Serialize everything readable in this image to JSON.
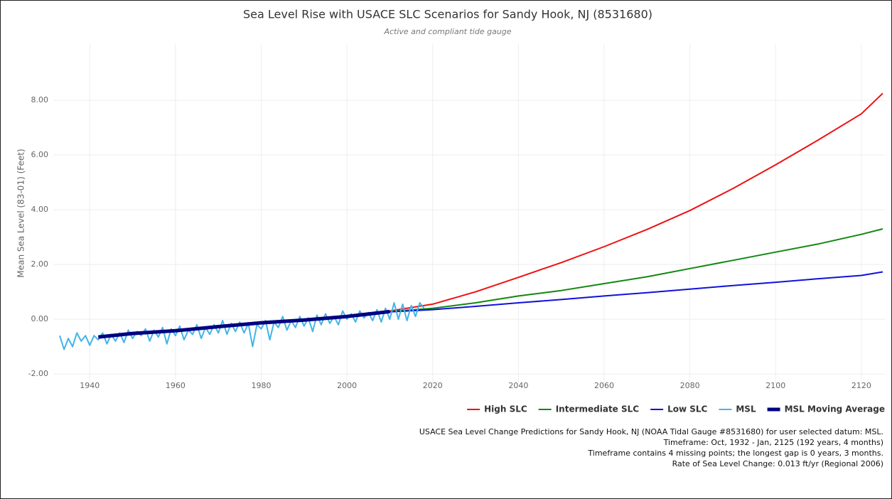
{
  "chart_data": {
    "type": "line",
    "title": "Sea Level Rise with USACE SLC Scenarios for Sandy Hook, NJ (8531680)",
    "subtitle": "Active and compliant tide gauge",
    "y_label": "Mean Sea Level (83-01) (Feet)",
    "xlim": [
      1931.5,
      2125.5
    ],
    "ylim": [
      -2.36,
      10.05
    ],
    "xticks": [
      1940,
      1960,
      1980,
      2000,
      2020,
      2040,
      2060,
      2080,
      2100,
      2120
    ],
    "yticks": [
      {
        "value": -2,
        "label": "-2.00"
      },
      {
        "value": 0,
        "label": "0.00"
      },
      {
        "value": 2,
        "label": "2.00"
      },
      {
        "value": 4,
        "label": "4.00"
      },
      {
        "value": 6,
        "label": "6.00"
      },
      {
        "value": 8,
        "label": "8.00"
      }
    ],
    "grid": true,
    "legend": "bottom-right",
    "series": [
      {
        "name": "High SLC",
        "color": "#ee1111",
        "width": 2,
        "x": [
          2010,
          2020,
          2030,
          2040,
          2050,
          2060,
          2070,
          2080,
          2090,
          2100,
          2110,
          2120,
          2125
        ],
        "values": [
          0.3,
          0.55,
          1.0,
          1.53,
          2.07,
          2.65,
          3.28,
          3.97,
          4.77,
          5.64,
          6.55,
          7.5,
          8.25
        ]
      },
      {
        "name": "Intermediate SLC",
        "color": "#118811",
        "width": 2,
        "x": [
          2010,
          2020,
          2030,
          2040,
          2050,
          2060,
          2070,
          2080,
          2090,
          2100,
          2110,
          2120,
          2125
        ],
        "values": [
          0.28,
          0.4,
          0.6,
          0.85,
          1.05,
          1.3,
          1.55,
          1.85,
          2.15,
          2.45,
          2.75,
          3.1,
          3.3
        ]
      },
      {
        "name": "Low SLC",
        "color": "#1111dd",
        "width": 2,
        "x": [
          2010,
          2020,
          2030,
          2040,
          2050,
          2060,
          2070,
          2080,
          2090,
          2100,
          2110,
          2120,
          2125
        ],
        "values": [
          0.27,
          0.35,
          0.47,
          0.6,
          0.72,
          0.85,
          0.97,
          1.1,
          1.23,
          1.35,
          1.48,
          1.6,
          1.73
        ]
      },
      {
        "name": "MSL",
        "color": "#44b4e8",
        "width": 2,
        "x": [
          1933,
          1934,
          1935,
          1936,
          1937,
          1938,
          1939,
          1940,
          1941,
          1942,
          1943,
          1944,
          1945,
          1946,
          1947,
          1948,
          1949,
          1950,
          1951,
          1952,
          1953,
          1954,
          1955,
          1956,
          1957,
          1958,
          1959,
          1960,
          1961,
          1962,
          1963,
          1964,
          1965,
          1966,
          1967,
          1968,
          1969,
          1970,
          1971,
          1972,
          1973,
          1974,
          1975,
          1976,
          1977,
          1978,
          1979,
          1980,
          1981,
          1982,
          1983,
          1984,
          1985,
          1986,
          1987,
          1988,
          1989,
          1990,
          1991,
          1992,
          1993,
          1994,
          1995,
          1996,
          1997,
          1998,
          1999,
          2000,
          2001,
          2002,
          2003,
          2004,
          2005,
          2006,
          2007,
          2008,
          2009,
          2010,
          2011,
          2012,
          2013,
          2014,
          2015,
          2016,
          2017,
          2018
        ],
        "values": [
          -0.6,
          -1.1,
          -0.7,
          -1.0,
          -0.5,
          -0.8,
          -0.6,
          -0.95,
          -0.6,
          -0.75,
          -0.5,
          -0.9,
          -0.55,
          -0.8,
          -0.5,
          -0.85,
          -0.4,
          -0.7,
          -0.45,
          -0.6,
          -0.35,
          -0.8,
          -0.4,
          -0.65,
          -0.3,
          -0.9,
          -0.35,
          -0.6,
          -0.25,
          -0.75,
          -0.4,
          -0.55,
          -0.2,
          -0.7,
          -0.3,
          -0.55,
          -0.2,
          -0.5,
          -0.05,
          -0.55,
          -0.15,
          -0.45,
          -0.1,
          -0.5,
          -0.15,
          -1.0,
          -0.2,
          -0.35,
          -0.05,
          -0.75,
          -0.1,
          -0.3,
          0.1,
          -0.4,
          -0.05,
          -0.3,
          0.1,
          -0.25,
          0.05,
          -0.45,
          0.15,
          -0.2,
          0.2,
          -0.15,
          0.1,
          -0.2,
          0.3,
          0.0,
          0.2,
          -0.1,
          0.3,
          0.05,
          0.25,
          -0.05,
          0.35,
          -0.1,
          0.4,
          0.0,
          0.6,
          0.0,
          0.55,
          -0.05,
          0.5,
          0.1,
          0.6,
          0.4
        ]
      },
      {
        "name": "MSL Moving Average",
        "color": "#000080",
        "width": 5,
        "x": [
          1942,
          1950,
          1960,
          1970,
          1980,
          1990,
          2000,
          2010
        ],
        "values": [
          -0.65,
          -0.52,
          -0.42,
          -0.27,
          -0.13,
          -0.03,
          0.1,
          0.28
        ]
      }
    ],
    "notes": [
      "USACE Sea Level Change Predictions for Sandy Hook, NJ (NOAA Tidal Gauge #8531680) for user selected datum: MSL.",
      "Timeframe: Oct, 1932 - Jan, 2125 (192 years, 4 months)",
      "Timeframe contains 4 missing points; the longest gap is 0 years, 3 months.",
      "Rate of Sea Level Change: 0.013 ft/yr (Regional 2006)"
    ]
  }
}
